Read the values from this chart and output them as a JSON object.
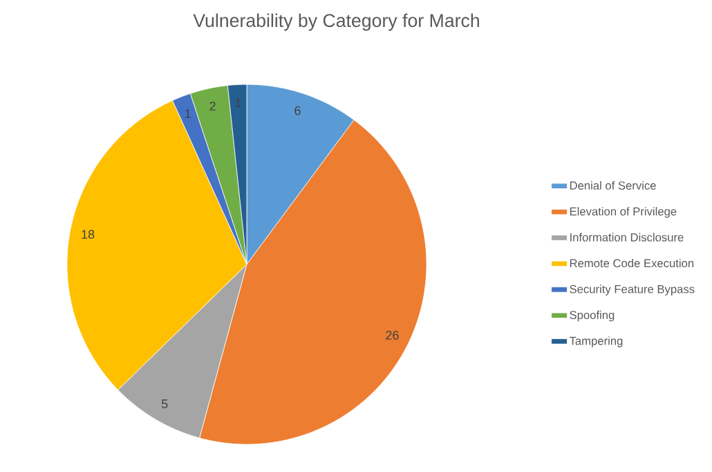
{
  "chart_data": {
    "type": "pie",
    "title": "Vulnerability by Category for March",
    "categories": [
      "Denial of Service",
      "Elevation of Privilege",
      "Information Disclosure",
      "Remote Code Execution",
      "Security Feature Bypass",
      "Spoofing",
      "Tampering"
    ],
    "values": [
      6,
      26,
      5,
      18,
      1,
      2,
      1
    ],
    "colors": [
      "#5b9bd5",
      "#ed7d31",
      "#a5a5a5",
      "#ffc000",
      "#4472c4",
      "#70ad47",
      "#255e91"
    ],
    "data_labels": true,
    "legend": "right"
  }
}
